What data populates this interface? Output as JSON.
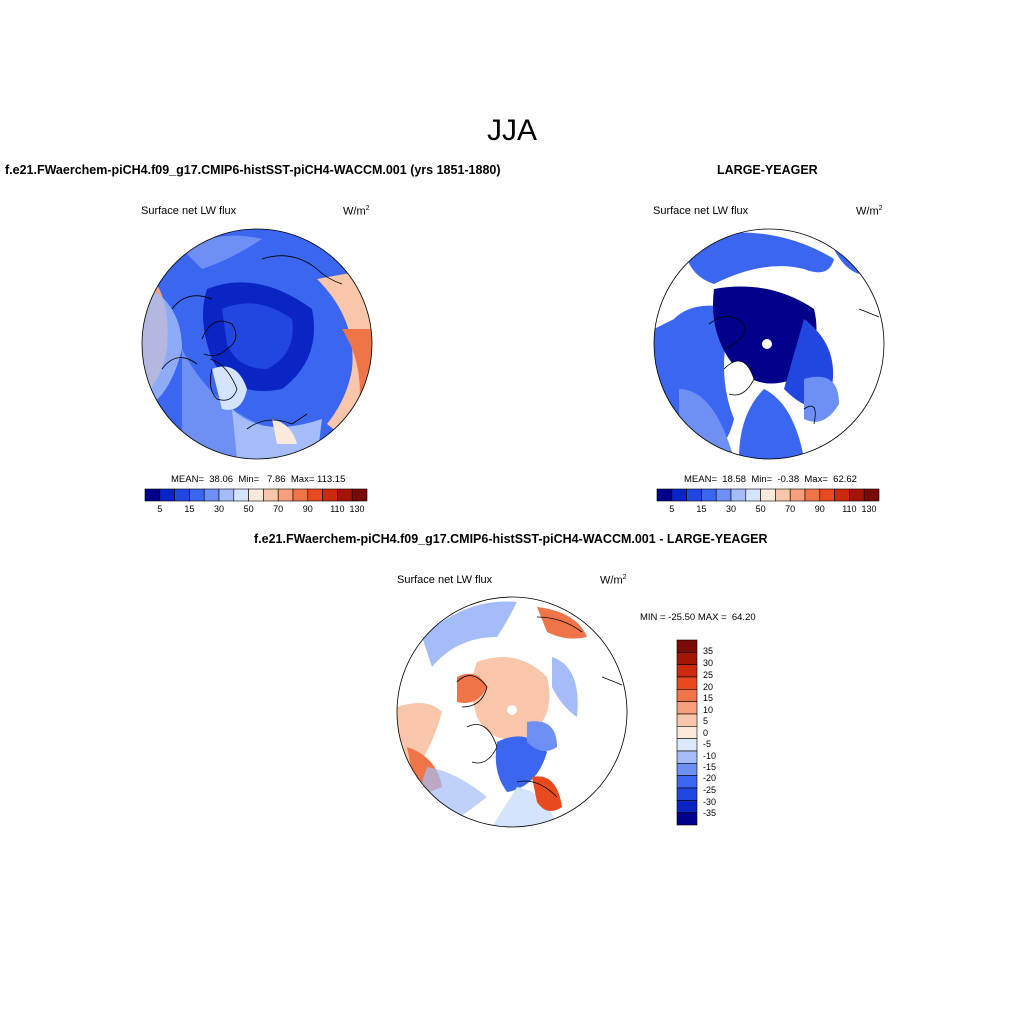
{
  "main_title": "JJA",
  "panels": [
    {
      "id": "model",
      "title": "f.e21.FWaerchem-piCH4.f09_g17.CMIP6-histSST-piCH4-WACCM.001 (yrs 1851-1880)",
      "variable": "Surface net LW flux",
      "units": "W/m",
      "units_sup": "2",
      "stats": "MEAN=  38.06  Min=   7.86  Max= 113.15",
      "colorbar_ticks": [
        "5",
        "15",
        "30",
        "50",
        "70",
        "90",
        "110",
        "130"
      ]
    },
    {
      "id": "obs",
      "title": "LARGE-YEAGER",
      "variable": "Surface net LW flux",
      "units": "W/m",
      "units_sup": "2",
      "stats": "MEAN=  18.58  Min=  -0.38  Max=  62.62",
      "colorbar_ticks": [
        "5",
        "15",
        "30",
        "50",
        "70",
        "90",
        "110",
        "130"
      ]
    },
    {
      "id": "diff",
      "title": "f.e21.FWaerchem-piCH4.f09_g17.CMIP6-histSST-piCH4-WACCM.001 - LARGE-YEAGER",
      "variable": "Surface net LW flux",
      "units": "W/m",
      "units_sup": "2",
      "stats": "MIN = -25.50 MAX =  64.20",
      "colorbar_ticks": [
        "35",
        "30",
        "25",
        "20",
        "15",
        "10",
        "5",
        "0",
        "-5",
        "-10",
        "-15",
        "-20",
        "-25",
        "-30",
        "-35"
      ]
    }
  ],
  "colors": {
    "abs_scale": [
      "#00008b",
      "#0b24c4",
      "#2147e0",
      "#3a66f0",
      "#6e90f5",
      "#a4bdf9",
      "#d3e4fc",
      "#fbe9dc",
      "#f8c6aa",
      "#f5a07a",
      "#ef7548",
      "#e74a1e",
      "#cc2a0c",
      "#a31607",
      "#7a0a04"
    ],
    "diff_scale": [
      "#7a0a04",
      "#a31607",
      "#cc2a0c",
      "#e74a1e",
      "#ef7548",
      "#f5a07a",
      "#f8c6aa",
      "#fbe9dc",
      "#dce9fc",
      "#a4bdf9",
      "#6e90f5",
      "#3a66f0",
      "#2147e0",
      "#0b24c4",
      "#00008b"
    ]
  }
}
